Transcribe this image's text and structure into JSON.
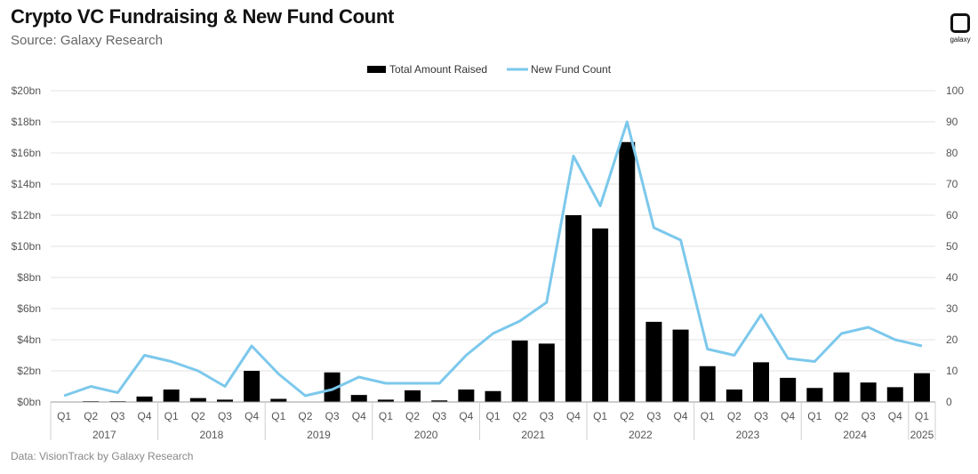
{
  "header": {
    "title": "Crypto VC Fundraising & New Fund Count",
    "subtitle": "Source: Galaxy Research"
  },
  "footer": {
    "text": "Data: VisionTrack by Galaxy Research"
  },
  "logo": {
    "text": "galaxy",
    "icon": "galaxy-logo-icon"
  },
  "colors": {
    "bar": "#000000",
    "line": "#7cc8ec",
    "grid": "#e3e3e3"
  },
  "chart_data": {
    "type": "bar",
    "categories": [
      "Q1",
      "Q2",
      "Q3",
      "Q4",
      "Q1",
      "Q2",
      "Q3",
      "Q4",
      "Q1",
      "Q2",
      "Q3",
      "Q4",
      "Q1",
      "Q2",
      "Q3",
      "Q4",
      "Q1",
      "Q2",
      "Q3",
      "Q4",
      "Q1",
      "Q2",
      "Q3",
      "Q4",
      "Q1",
      "Q2",
      "Q3",
      "Q4",
      "Q1",
      "Q2",
      "Q3",
      "Q4",
      "Q1"
    ],
    "years": [
      {
        "label": "2017",
        "span": 4
      },
      {
        "label": "2018",
        "span": 4
      },
      {
        "label": "2019",
        "span": 4
      },
      {
        "label": "2020",
        "span": 4
      },
      {
        "label": "2021",
        "span": 4
      },
      {
        "label": "2022",
        "span": 4
      },
      {
        "label": "2023",
        "span": 4
      },
      {
        "label": "2024",
        "span": 4
      },
      {
        "label": "2025",
        "span": 1
      }
    ],
    "series": [
      {
        "name": "Total Amount Raised",
        "type": "bar",
        "axis": "left",
        "values": [
          0.02,
          0.05,
          0.05,
          0.35,
          0.8,
          0.25,
          0.15,
          2.0,
          0.2,
          0.02,
          1.9,
          0.45,
          0.15,
          0.75,
          0.1,
          0.8,
          0.7,
          3.95,
          3.75,
          12.0,
          11.15,
          16.7,
          5.15,
          4.65,
          2.3,
          0.8,
          2.55,
          1.55,
          0.9,
          1.9,
          1.25,
          0.95,
          1.85
        ]
      },
      {
        "name": "New Fund Count",
        "type": "line",
        "axis": "right",
        "values": [
          2,
          5,
          3,
          15,
          13,
          10,
          5,
          18,
          9,
          2,
          4,
          8,
          6,
          6,
          6,
          15,
          22,
          26,
          32,
          79,
          63,
          90,
          56,
          52,
          17,
          15,
          28,
          14,
          13,
          22,
          24,
          20,
          18
        ]
      }
    ],
    "y_left": {
      "min": 0,
      "max": 20,
      "step": 2,
      "ticks": [
        "$0bn",
        "$2bn",
        "$4bn",
        "$6bn",
        "$8bn",
        "$10bn",
        "$12bn",
        "$14bn",
        "$16bn",
        "$18bn",
        "$20bn"
      ]
    },
    "y_right": {
      "min": 0,
      "max": 100,
      "step": 10,
      "ticks": [
        "0",
        "10",
        "20",
        "30",
        "40",
        "50",
        "60",
        "70",
        "80",
        "90",
        "100"
      ]
    },
    "grid": true,
    "legend": "top-center"
  }
}
